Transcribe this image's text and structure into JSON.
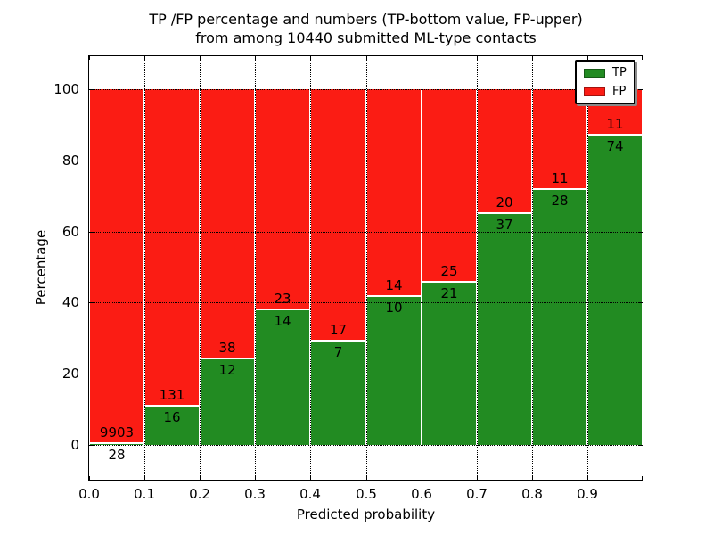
{
  "chart_data": {
    "type": "bar",
    "stacked": true,
    "title_lines": [
      "TP /FP percentage and numbers (TP-bottom value, FP-upper)",
      "from among 10440 submitted ML-type contacts"
    ],
    "total_contacts": 10440,
    "xlabel": "Predicted probability",
    "ylabel": "Percentage",
    "xlim": [
      0.0,
      1.0
    ],
    "ylim": [
      -10,
      110
    ],
    "bin_width": 0.1,
    "bin_starts": [
      0.0,
      0.1,
      0.2,
      0.3,
      0.4,
      0.5,
      0.6,
      0.7,
      0.8,
      0.9
    ],
    "xtick_labels": [
      "0.0",
      "0.1",
      "0.2",
      "0.3",
      "0.4",
      "0.5",
      "0.6",
      "0.7",
      "0.8",
      "0.9"
    ],
    "ytick_values": [
      0,
      20,
      40,
      60,
      80,
      100
    ],
    "grid": "dotted",
    "bar_edge_color": "#ffffff",
    "series": [
      {
        "name": "TP",
        "color": "#228b22",
        "counts": [
          28,
          16,
          12,
          14,
          7,
          10,
          21,
          37,
          28,
          74
        ]
      },
      {
        "name": "FP",
        "color": "#fb1c14",
        "counts": [
          9903,
          131,
          38,
          23,
          17,
          14,
          25,
          20,
          11,
          11
        ]
      }
    ],
    "tp_percentages": [
      0.28,
      10.88,
      24.0,
      37.84,
      29.17,
      41.67,
      45.65,
      64.91,
      71.79,
      87.06
    ],
    "legend": {
      "position": "upper right",
      "entries": [
        {
          "label": "TP",
          "color": "#228b22"
        },
        {
          "label": "FP",
          "color": "#fb1c14"
        }
      ]
    }
  }
}
